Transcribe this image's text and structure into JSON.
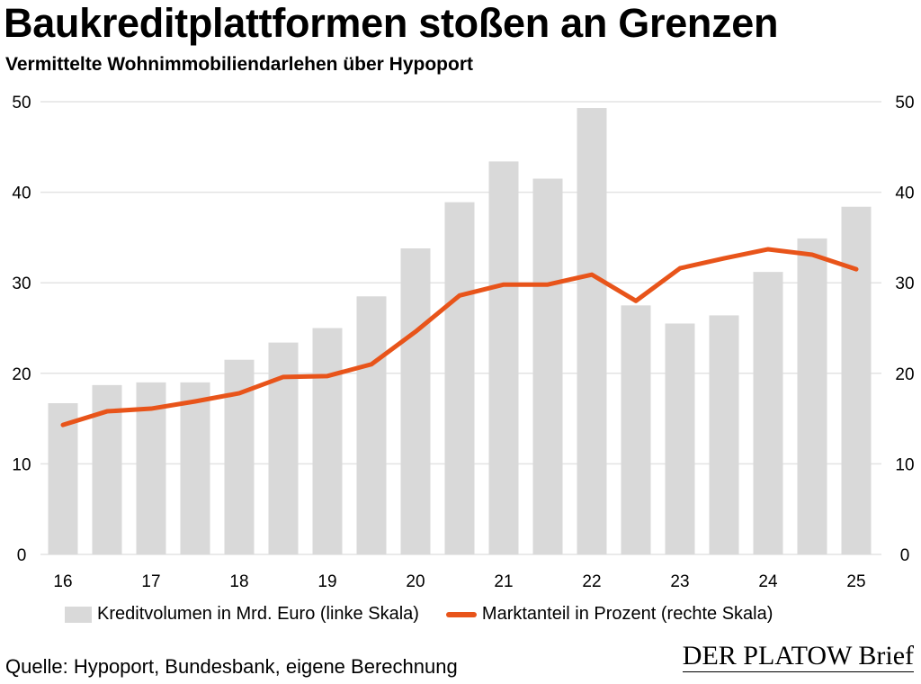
{
  "title": "Baukreditplattformen stoßen an Grenzen",
  "subtitle": "Vermittelte Wohnimmobiliendarlehen über Hypoport",
  "source": "Quelle: Hypoport, Bundesbank, eigene Berechnung",
  "logo": "DER PLATOW Brief",
  "colors": {
    "bar": "#d9d9d9",
    "line": "#e8541a",
    "grid": "#e3e3e3"
  },
  "chart_data": {
    "type": "bar+line",
    "title": "Baukreditplattformen stoßen an Grenzen",
    "x_tick_labels": [
      "16",
      "17",
      "18",
      "19",
      "20",
      "21",
      "22",
      "23",
      "24",
      "25"
    ],
    "periods": [
      "16 H1",
      "16 H2",
      "17 H1",
      "17 H2",
      "18 H1",
      "18 H2",
      "19 H1",
      "19 H2",
      "20 H1",
      "20 H2",
      "21 H1",
      "21 H2",
      "22 H1",
      "22 H2",
      "23 H1",
      "23 H2",
      "24 H1",
      "24 H2",
      "25 H1"
    ],
    "y_left": {
      "min": 0,
      "max": 50,
      "ticks": [
        "0",
        "10",
        "20",
        "30",
        "40",
        "50"
      ]
    },
    "y_right": {
      "min": 0,
      "max": 50,
      "ticks": [
        "0",
        "10",
        "20",
        "30",
        "40",
        "50"
      ]
    },
    "grid": true,
    "legend_position": "bottom",
    "series": [
      {
        "name": "Kreditvolumen in Mrd. Euro (linke Skala)",
        "type": "bar",
        "axis": "left",
        "values": [
          16.7,
          18.7,
          19.0,
          19.0,
          21.5,
          23.4,
          25.0,
          28.5,
          33.8,
          38.9,
          43.4,
          41.5,
          49.3,
          27.5,
          25.5,
          26.4,
          31.2,
          34.9,
          38.4
        ]
      },
      {
        "name": "Marktanteil in Prozent (rechte Skala)",
        "type": "line",
        "axis": "right",
        "values": [
          14.3,
          15.8,
          16.1,
          16.9,
          17.8,
          19.6,
          19.7,
          21.0,
          24.6,
          28.6,
          29.8,
          29.8,
          30.9,
          28.0,
          31.6,
          32.7,
          33.7,
          33.1,
          31.5
        ]
      }
    ]
  }
}
